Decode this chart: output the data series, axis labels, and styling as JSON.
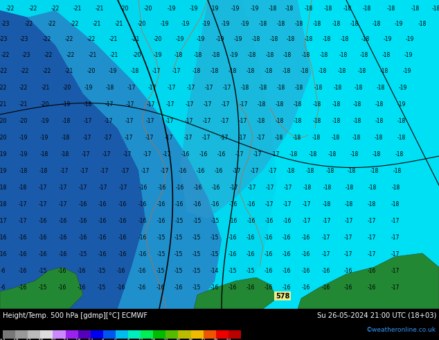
{
  "title_left": "Height/Temp. 500 hPa [gdmp][°C] ECMWF",
  "title_right": "Su 26-05-2024 21:00 UTC (18+03)",
  "credit": "©weatheronline.co.uk",
  "colorbar_ticks": [
    -54,
    -48,
    -42,
    -36,
    -30,
    -24,
    -18,
    -12,
    -6,
    0,
    6,
    12,
    18,
    24,
    30,
    36,
    42,
    48,
    54
  ],
  "colorbar_colors": [
    "#787878",
    "#999999",
    "#bbbbbb",
    "#dddddd",
    "#cc88ff",
    "#9922ee",
    "#5500bb",
    "#0000ee",
    "#0055ee",
    "#00bbee",
    "#00eebb",
    "#00ee55",
    "#00bb00",
    "#55bb00",
    "#bbbb00",
    "#eebb00",
    "#ee5500",
    "#ee0000",
    "#bb0000"
  ],
  "bg_dark_blue": "#1a5aaa",
  "bg_mid_blue": "#2090cc",
  "bg_cyan": "#00d8f0",
  "bg_light_cyan": "#00eeff",
  "land_dark": "#004400",
  "land_green": "#007700",
  "border_dark": "#333333",
  "border_orange": "#cc6633",
  "contour_color": "#000000",
  "geop_label_bg": "#eeee88",
  "fig_width": 6.34,
  "fig_height": 4.9,
  "dpi": 100
}
